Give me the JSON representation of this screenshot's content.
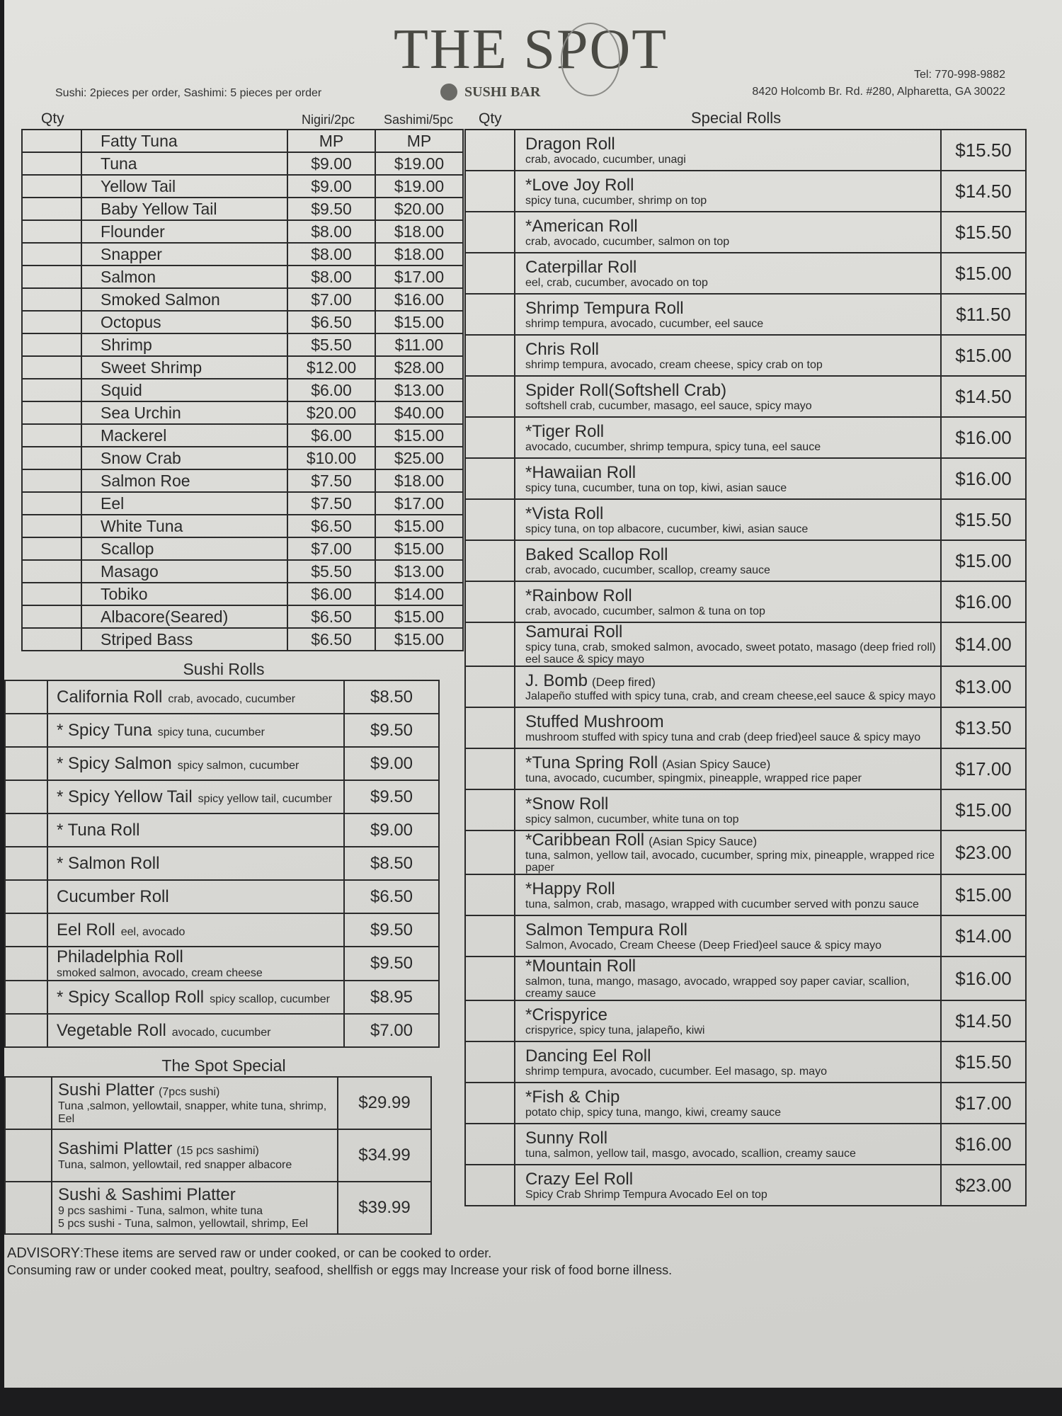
{
  "header": {
    "logo_text": "THE SPOT",
    "logo_subtitle": "SUSHI BAR",
    "order_note": "Sushi: 2pieces per order,  Sashimi: 5 pieces per order",
    "tel": "Tel: 770-998-9882",
    "address": "8420 Holcomb Br. Rd. #280, Alpharetta, GA 30022"
  },
  "nigiri": {
    "qty_label": "Qty",
    "col_nigiri": "Nigiri/2pc",
    "col_sashimi": "Sashimi/5pc",
    "items": [
      {
        "name": "Fatty Tuna",
        "nigiri": "MP",
        "sashimi": "MP"
      },
      {
        "name": "Tuna",
        "nigiri": "$9.00",
        "sashimi": "$19.00"
      },
      {
        "name": "Yellow Tail",
        "nigiri": "$9.00",
        "sashimi": "$19.00"
      },
      {
        "name": "Baby Yellow Tail",
        "nigiri": "$9.50",
        "sashimi": "$20.00"
      },
      {
        "name": "Flounder",
        "nigiri": "$8.00",
        "sashimi": "$18.00"
      },
      {
        "name": "Snapper",
        "nigiri": "$8.00",
        "sashimi": "$18.00"
      },
      {
        "name": "Salmon",
        "nigiri": "$8.00",
        "sashimi": "$17.00"
      },
      {
        "name": "Smoked Salmon",
        "nigiri": "$7.00",
        "sashimi": "$16.00"
      },
      {
        "name": "Octopus",
        "nigiri": "$6.50",
        "sashimi": "$15.00"
      },
      {
        "name": "Shrimp",
        "nigiri": "$5.50",
        "sashimi": "$11.00"
      },
      {
        "name": "Sweet Shrimp",
        "nigiri": "$12.00",
        "sashimi": "$28.00"
      },
      {
        "name": "Squid",
        "nigiri": "$6.00",
        "sashimi": "$13.00"
      },
      {
        "name": "Sea Urchin",
        "nigiri": "$20.00",
        "sashimi": "$40.00"
      },
      {
        "name": "Mackerel",
        "nigiri": "$6.00",
        "sashimi": "$15.00"
      },
      {
        "name": "Snow Crab",
        "nigiri": "$10.00",
        "sashimi": "$25.00"
      },
      {
        "name": "Salmon Roe",
        "nigiri": "$7.50",
        "sashimi": "$18.00"
      },
      {
        "name": "Eel",
        "nigiri": "$7.50",
        "sashimi": "$17.00"
      },
      {
        "name": "White Tuna",
        "nigiri": "$6.50",
        "sashimi": "$15.00"
      },
      {
        "name": "Scallop",
        "nigiri": "$7.00",
        "sashimi": "$15.00"
      },
      {
        "name": "Masago",
        "nigiri": "$5.50",
        "sashimi": "$13.00"
      },
      {
        "name": "Tobiko",
        "nigiri": "$6.00",
        "sashimi": "$14.00"
      },
      {
        "name": "Albacore(Seared)",
        "nigiri": "$6.50",
        "sashimi": "$15.00"
      },
      {
        "name": "Striped Bass",
        "nigiri": "$6.50",
        "sashimi": "$15.00"
      }
    ]
  },
  "sushi_rolls": {
    "title": "Sushi Rolls",
    "items": [
      {
        "name": "California Roll",
        "desc": "crab, avocado, cucumber",
        "price": "$8.50"
      },
      {
        "name": "* Spicy Tuna",
        "desc": "spicy tuna, cucumber",
        "price": "$9.50"
      },
      {
        "name": "* Spicy Salmon",
        "desc": "spicy salmon, cucumber",
        "price": "$9.00"
      },
      {
        "name": "* Spicy Yellow Tail",
        "desc": "spicy yellow tail, cucumber",
        "price": "$9.50"
      },
      {
        "name": "* Tuna Roll",
        "desc": "",
        "price": "$9.00"
      },
      {
        "name": "* Salmon Roll",
        "desc": "",
        "price": "$8.50"
      },
      {
        "name": "Cucumber Roll",
        "desc": "",
        "price": "$6.50"
      },
      {
        "name": "Eel Roll",
        "desc": "eel, avocado",
        "price": "$9.50"
      },
      {
        "name": "Philadelphia Roll",
        "desc": "smoked salmon, avocado, cream cheese",
        "price": "$9.50",
        "stack": true
      },
      {
        "name": "* Spicy Scallop Roll",
        "desc": "spicy scallop, cucumber",
        "price": "$8.95"
      },
      {
        "name": "Vegetable Roll",
        "desc": "avocado, cucumber",
        "price": "$7.00"
      }
    ]
  },
  "spot_special": {
    "title": "The Spot Special",
    "items": [
      {
        "name": "Sushi Platter",
        "note": "(7pcs sushi)",
        "desc": "Tuna ,salmon, yellowtail, snapper, white tuna, shrimp, Eel",
        "price": "$29.99"
      },
      {
        "name": "Sashimi Platter",
        "note": "(15 pcs sashimi)",
        "desc": "Tuna, salmon, yellowtail, red snapper albacore",
        "price": "$34.99"
      },
      {
        "name": "Sushi & Sashimi Platter",
        "note": "",
        "desc": "9 pcs sashimi - Tuna, salmon, white tuna",
        "desc2": "5 pcs sushi - Tuna, salmon, yellowtail, shrimp, Eel",
        "price": "$39.99"
      }
    ]
  },
  "special_rolls": {
    "qty_label": "Qty",
    "title": "Special Rolls",
    "items": [
      {
        "name": "Dragon Roll",
        "extra": "",
        "desc": "crab, avocado, cucumber, unagi",
        "price": "$15.50"
      },
      {
        "name": "*Love Joy Roll",
        "extra": "",
        "desc": "spicy tuna,  cucumber, shrimp on top",
        "price": "$14.50"
      },
      {
        "name": "*American Roll",
        "extra": "",
        "desc": "crab, avocado, cucumber, salmon on top",
        "price": "$15.50"
      },
      {
        "name": "Caterpillar Roll",
        "extra": "",
        "desc": "eel, crab, cucumber, avocado on top",
        "price": "$15.00"
      },
      {
        "name": "Shrimp Tempura Roll",
        "extra": "",
        "desc": "shrimp tempura, avocado, cucumber, eel sauce",
        "price": "$11.50"
      },
      {
        "name": "Chris Roll",
        "extra": "",
        "desc": "shrimp tempura, avocado, cream cheese, spicy crab on top",
        "price": "$15.00"
      },
      {
        "name": "Spider Roll(Softshell Crab)",
        "extra": "",
        "desc": "softshell crab, cucumber, masago, eel sauce, spicy mayo",
        "price": "$14.50"
      },
      {
        "name": "*Tiger Roll",
        "extra": "",
        "desc": "avocado, cucumber, shrimp tempura, spicy tuna, eel sauce",
        "price": "$16.00"
      },
      {
        "name": "*Hawaiian Roll",
        "extra": "",
        "desc": "spicy tuna, cucumber, tuna on top, kiwi, asian sauce",
        "price": "$16.00"
      },
      {
        "name": "*Vista Roll",
        "extra": "",
        "desc": "spicy tuna, on top albacore, cucumber, kiwi, asian sauce",
        "price": "$15.50"
      },
      {
        "name": "Baked Scallop Roll",
        "extra": "",
        "desc": "crab, avocado, cucumber, scallop, creamy sauce",
        "price": "$15.00"
      },
      {
        "name": "*Rainbow Roll",
        "extra": "",
        "desc": "crab, avocado, cucumber, salmon & tuna on top",
        "price": "$16.00"
      },
      {
        "name": "Samurai Roll",
        "extra": "",
        "desc": "spicy tuna, crab, smoked salmon, avocado, sweet potato, masago (deep fried roll) eel sauce & spicy mayo",
        "price": "$14.00"
      },
      {
        "name": "J. Bomb",
        "extra": "(Deep fired)",
        "desc": "Jalapeño stuffed with spicy tuna, crab, and cream cheese,eel sauce & spicy mayo",
        "price": "$13.00"
      },
      {
        "name": "Stuffed Mushroom",
        "extra": "",
        "desc": "mushroom stuffed with spicy tuna and crab (deep fried)eel sauce & spicy mayo",
        "price": "$13.50"
      },
      {
        "name": "*Tuna Spring Roll",
        "extra": "(Asian Spicy Sauce)",
        "desc": "tuna, avocado, cucumber, spingmix, pineapple, wrapped rice paper",
        "price": "$17.00"
      },
      {
        "name": "*Snow Roll",
        "extra": "",
        "desc": "spicy salmon, cucumber, white tuna on top",
        "price": "$15.00"
      },
      {
        "name": "*Caribbean Roll",
        "extra": "(Asian Spicy Sauce)",
        "desc": "tuna, salmon, yellow tail,  avocado, cucumber, spring mix,  pineapple, wrapped rice paper",
        "price": "$23.00"
      },
      {
        "name": "*Happy Roll",
        "extra": "",
        "desc": "tuna, salmon, crab, masago, wrapped with cucumber served with ponzu sauce",
        "price": "$15.00"
      },
      {
        "name": "Salmon Tempura Roll",
        "extra": "",
        "desc": "Salmon, Avocado, Cream Cheese (Deep Fried)eel sauce & spicy mayo",
        "price": "$14.00"
      },
      {
        "name": "*Mountain Roll",
        "extra": "",
        "desc": "salmon, tuna, mango, masago, avocado, wrapped soy paper caviar, scallion, creamy sauce",
        "price": "$16.00"
      },
      {
        "name": "*Crispyrice",
        "extra": "",
        "desc": "crispyrice, spicy tuna, jalapeño, kiwi",
        "price": "$14.50"
      },
      {
        "name": "Dancing Eel Roll",
        "extra": "",
        "desc": "shrimp tempura, avocado, cucumber. Eel masago, sp. mayo",
        "price": "$15.50"
      },
      {
        "name": "*Fish & Chip",
        "extra": "",
        "desc": "potato chip, spicy tuna, mango, kiwi, creamy sauce",
        "price": "$17.00"
      },
      {
        "name": "Sunny Roll",
        "extra": "",
        "desc": "tuna, salmon, yellow tail, masgo, avocado, scallion, creamy sauce",
        "price": "$16.00"
      },
      {
        "name": "Crazy Eel Roll",
        "extra": "",
        "desc": "Spicy Crab Shrimp Tempura Avocado Eel on top",
        "price": "$23.00"
      }
    ]
  },
  "advisory": {
    "label": "ADVISORY",
    "line1": ":These items are served raw or under cooked, or can be cooked to order.",
    "line2": "Consuming raw or under cooked meat, poultry, seafood, shellfish or eggs may Increase your risk of food borne illness."
  }
}
